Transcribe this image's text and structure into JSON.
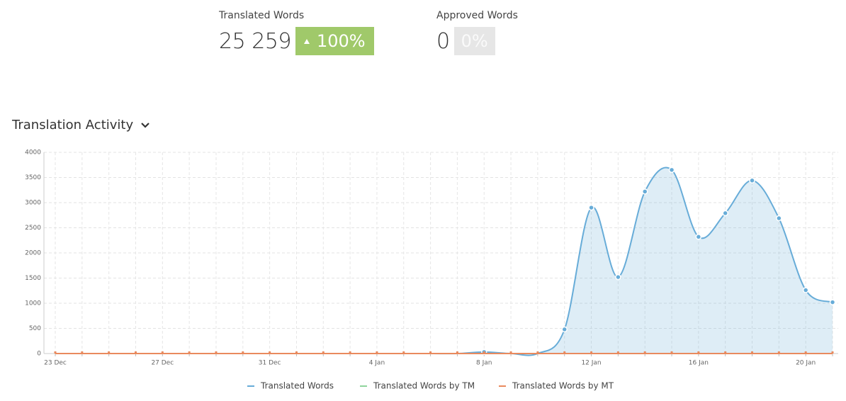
{
  "stats": [
    {
      "label": "Translated Words",
      "value": "25 259",
      "change": "100%"
    },
    {
      "label": "Approved Words",
      "value": "0",
      "change": "0%"
    }
  ],
  "chart_data": {
    "type": "line",
    "title": "Translation Activity",
    "categories": [
      "23 Dec",
      null,
      null,
      null,
      "27 Dec",
      null,
      null,
      null,
      "31 Dec",
      null,
      null,
      null,
      "4 Jan",
      null,
      null,
      null,
      "8 Jan",
      null,
      null,
      null,
      "12 Jan",
      null,
      null,
      null,
      "16 Jan",
      null,
      null,
      null,
      "20 Jan",
      null
    ],
    "series": [
      {
        "name": "Translated Words",
        "color": "#67acd8",
        "values": [
          0,
          0,
          0,
          0,
          0,
          0,
          0,
          0,
          0,
          0,
          0,
          0,
          0,
          0,
          0,
          0,
          30,
          0,
          0,
          480,
          2900,
          1520,
          3220,
          3650,
          2320,
          2790,
          3440,
          2690,
          1260,
          1020
        ]
      },
      {
        "name": "Translated Words by TM",
        "color": "#8fd49c",
        "values": [
          0,
          0,
          0,
          0,
          0,
          0,
          0,
          0,
          0,
          0,
          0,
          0,
          0,
          0,
          0,
          0,
          0,
          0,
          0,
          0,
          0,
          0,
          0,
          0,
          0,
          0,
          0,
          0,
          0,
          0
        ]
      },
      {
        "name": "Translated Words by MT",
        "color": "#e98a5e",
        "values": [
          0,
          0,
          0,
          0,
          0,
          0,
          0,
          0,
          0,
          0,
          0,
          0,
          0,
          0,
          0,
          0,
          0,
          0,
          0,
          0,
          0,
          0,
          0,
          0,
          0,
          0,
          0,
          0,
          0,
          0
        ]
      }
    ],
    "ylim": [
      0,
      4000
    ],
    "yticks": [
      0,
      500,
      1000,
      1500,
      2000,
      2500,
      3000,
      3500,
      4000
    ],
    "grid": true,
    "area": true,
    "legend": "bottom"
  }
}
